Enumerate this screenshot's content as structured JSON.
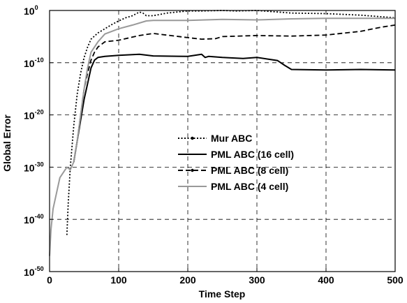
{
  "chart_data": {
    "type": "line",
    "xlabel": "Time Step",
    "ylabel": "Global Error",
    "xlim": [
      0,
      500
    ],
    "ylim_log10": [
      -50,
      0
    ],
    "y_scale": "log",
    "grid": true,
    "grid_style": "dashed",
    "legend_position": "center",
    "x_ticks": [
      0,
      100,
      200,
      300,
      400,
      500
    ],
    "y_ticks": [
      {
        "base": "10",
        "exp": "0",
        "value": 0
      },
      {
        "base": "10",
        "exp": "-10",
        "value": -10
      },
      {
        "base": "10",
        "exp": "-20",
        "value": -20
      },
      {
        "base": "10",
        "exp": "-30",
        "value": -30
      },
      {
        "base": "10",
        "exp": "-40",
        "value": -40
      },
      {
        "base": "10",
        "exp": "-50",
        "value": -50
      }
    ],
    "series": [
      {
        "name": "Mur ABC",
        "color": "#000000",
        "style": "dotted",
        "x": [
          25,
          27,
          30,
          35,
          40,
          45,
          50,
          55,
          60,
          70,
          80,
          90,
          100,
          110,
          120,
          130,
          135,
          140,
          150,
          170,
          200,
          220,
          250,
          270,
          300,
          330,
          350,
          400,
          450,
          480,
          500
        ],
        "log10_y": [
          -43,
          -37,
          -30,
          -22,
          -16,
          -12,
          -9,
          -7,
          -5.5,
          -4.3,
          -3.5,
          -2.7,
          -2,
          -1.4,
          -1,
          -0.3,
          -0.5,
          -1,
          -1,
          -0.5,
          -0.1,
          -0.1,
          0,
          -0.1,
          0,
          -0.3,
          -0.5,
          -0.6,
          -0.9,
          -1.2,
          -1.4
        ]
      },
      {
        "name": "PML ABC (16 cell)",
        "color": "#000000",
        "style": "solid",
        "x": [
          35,
          40,
          45,
          50,
          55,
          60,
          65,
          70,
          80,
          100,
          130,
          150,
          200,
          210,
          220,
          225,
          230,
          250,
          280,
          300,
          320,
          330,
          340,
          350,
          400,
          450,
          500
        ],
        "log10_y": [
          -29,
          -25,
          -21,
          -17,
          -14,
          -11,
          -9.5,
          -9,
          -8.8,
          -8.6,
          -8.4,
          -8.7,
          -8.8,
          -8.6,
          -8.4,
          -9,
          -8.8,
          -9,
          -9.2,
          -9,
          -9.4,
          -9.6,
          -10.5,
          -11.3,
          -11.4,
          -11.3,
          -11.4
        ]
      },
      {
        "name": "PML ABC (8 cell)",
        "color": "#000000",
        "style": "dashed",
        "x": [
          35,
          40,
          45,
          50,
          55,
          60,
          65,
          70,
          80,
          100,
          130,
          150,
          200,
          220,
          240,
          250,
          300,
          350,
          400,
          450,
          480,
          500
        ],
        "log10_y": [
          -29,
          -25,
          -20,
          -15,
          -12,
          -9.5,
          -8,
          -7,
          -6,
          -5.7,
          -4.8,
          -4.4,
          -5.2,
          -5.5,
          -5.4,
          -5,
          -4.8,
          -4.9,
          -4.7,
          -4,
          -3.2,
          -2.8
        ]
      },
      {
        "name": "PML ABC (4 cell)",
        "color": "#999999",
        "style": "solid",
        "x": [
          0,
          2,
          5,
          10,
          15,
          20,
          25,
          30,
          35,
          40,
          45,
          50,
          55,
          60,
          70,
          80,
          100,
          120,
          140,
          150,
          200,
          250,
          300,
          350,
          400,
          450,
          500
        ],
        "log10_y": [
          -47,
          -42,
          -38,
          -35,
          -32,
          -31,
          -30,
          -30.5,
          -29,
          -25,
          -20,
          -15,
          -11,
          -8,
          -6,
          -4.5,
          -3.5,
          -2.8,
          -2,
          -1.9,
          -1.9,
          -1.7,
          -1.8,
          -1.6,
          -1.5,
          -1.5,
          -1.5
        ]
      }
    ]
  }
}
